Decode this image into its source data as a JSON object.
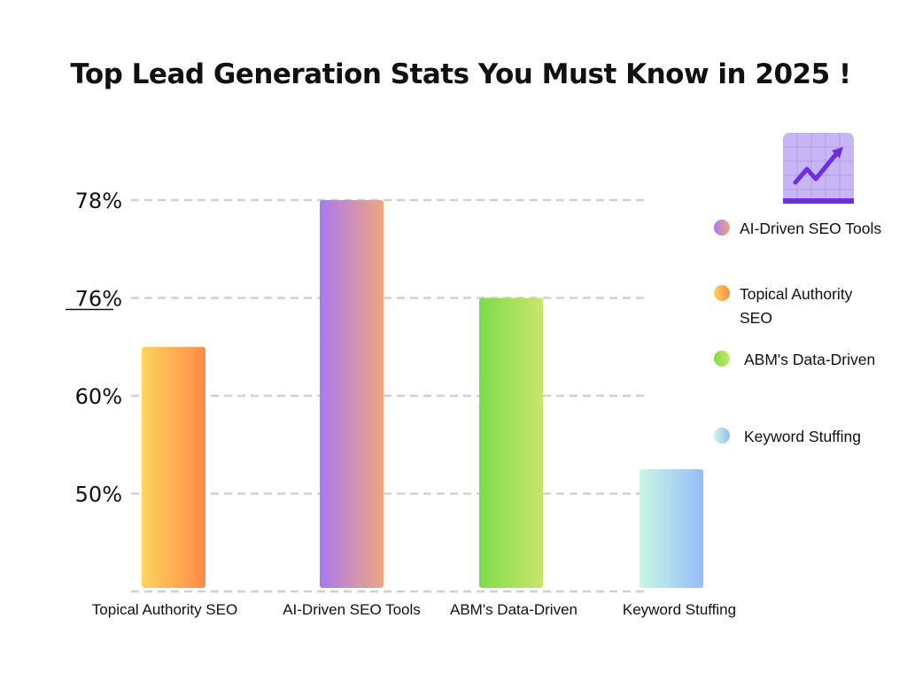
{
  "title": "Top Lead Generation Stats You Must Know in 2025 !",
  "icon": "trending-up-chart-icon",
  "colors": {
    "gridline": "#cfcfd6",
    "text": "#111111",
    "icon_bg": "#c6b6f3",
    "icon_accent": "#6d2ee0"
  },
  "chart_data": {
    "type": "bar",
    "title": "Top Lead Generation Stats You Must Know in 2025 !",
    "categories": [
      "Topical Authority SEO",
      "AI-Driven SEO Tools",
      "ABM's Data-Driven",
      "Keyword Stuffing"
    ],
    "y_tick_labels": [
      "78%",
      "76%",
      "60%",
      "50%"
    ],
    "bar_levels": [
      2.5,
      4.0,
      3.0,
      1.25
    ],
    "level_units": "gridline steps above baseline (50% line = 1, 60% = 2, 76% = 3, 78% = 4)",
    "grid": true,
    "legend_position": "right",
    "series_colors": [
      [
        "#fdd45f",
        "#ff8a45"
      ],
      [
        "#a97af0",
        "#f0a67d"
      ],
      [
        "#7cdc4a",
        "#cbe56a"
      ],
      [
        "#c9f7e4",
        "#94bdfa"
      ]
    ]
  },
  "legend": [
    {
      "label": "AI-Driven SEO Tools",
      "colors": [
        "#a97af0",
        "#f0a67d"
      ]
    },
    {
      "label": "Topical Authority SEO",
      "colors": [
        "#fdd45f",
        "#ff8a45"
      ]
    },
    {
      "label": "ABM's Data-Driven",
      "colors": [
        "#7cdc4a",
        "#cbe56a"
      ]
    },
    {
      "label": "Keyword Stuffing",
      "colors": [
        "#c9f7e4",
        "#94bdfa"
      ]
    }
  ]
}
